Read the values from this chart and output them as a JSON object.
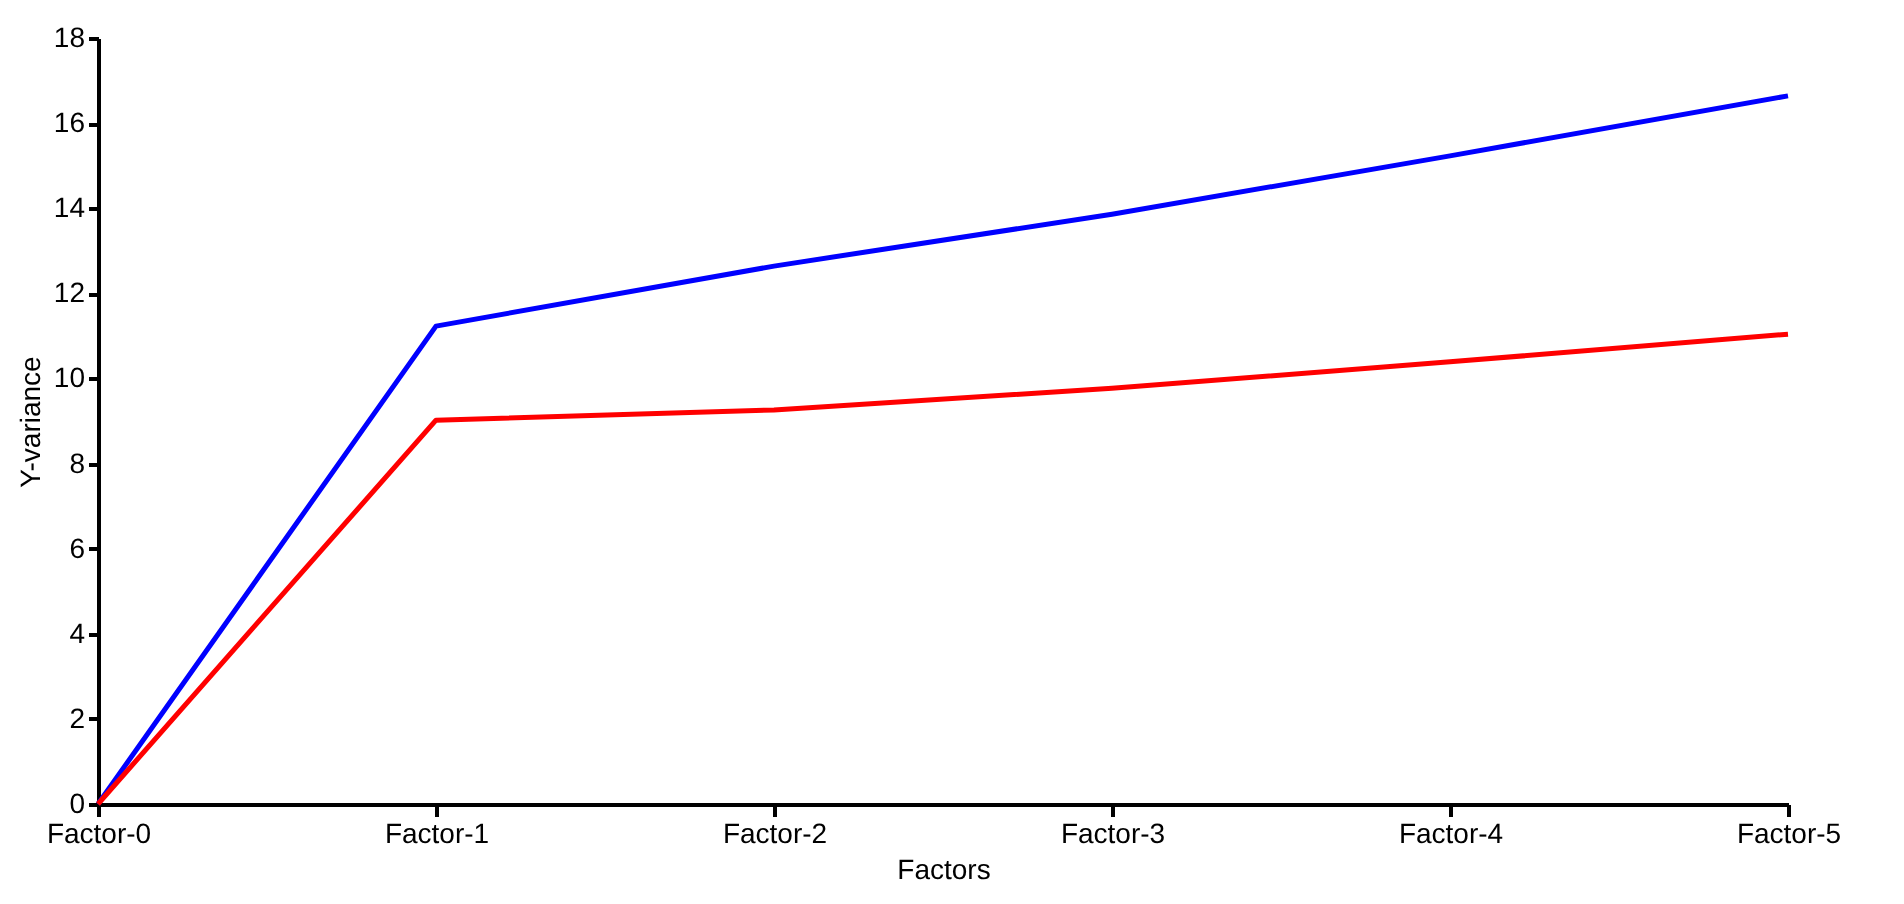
{
  "chart_data": {
    "type": "line",
    "xlabel": "Factors",
    "ylabel": "Y-variance",
    "categories": [
      "Factor-0",
      "Factor-1",
      "Factor-2",
      "Factor-3",
      "Factor-4",
      "Factor-5"
    ],
    "series": [
      {
        "color": "#0000ff",
        "values": [
          0,
          11.23,
          12.64,
          13.86,
          15.23,
          16.64
        ]
      },
      {
        "color": "#ff0000",
        "values": [
          0,
          9.02,
          9.26,
          9.77,
          10.39,
          11.04
        ]
      }
    ],
    "ylim": [
      0,
      18
    ],
    "yticks": [
      0,
      2,
      4,
      6,
      8,
      10,
      12,
      14,
      16,
      18
    ],
    "line_style": "solid"
  }
}
